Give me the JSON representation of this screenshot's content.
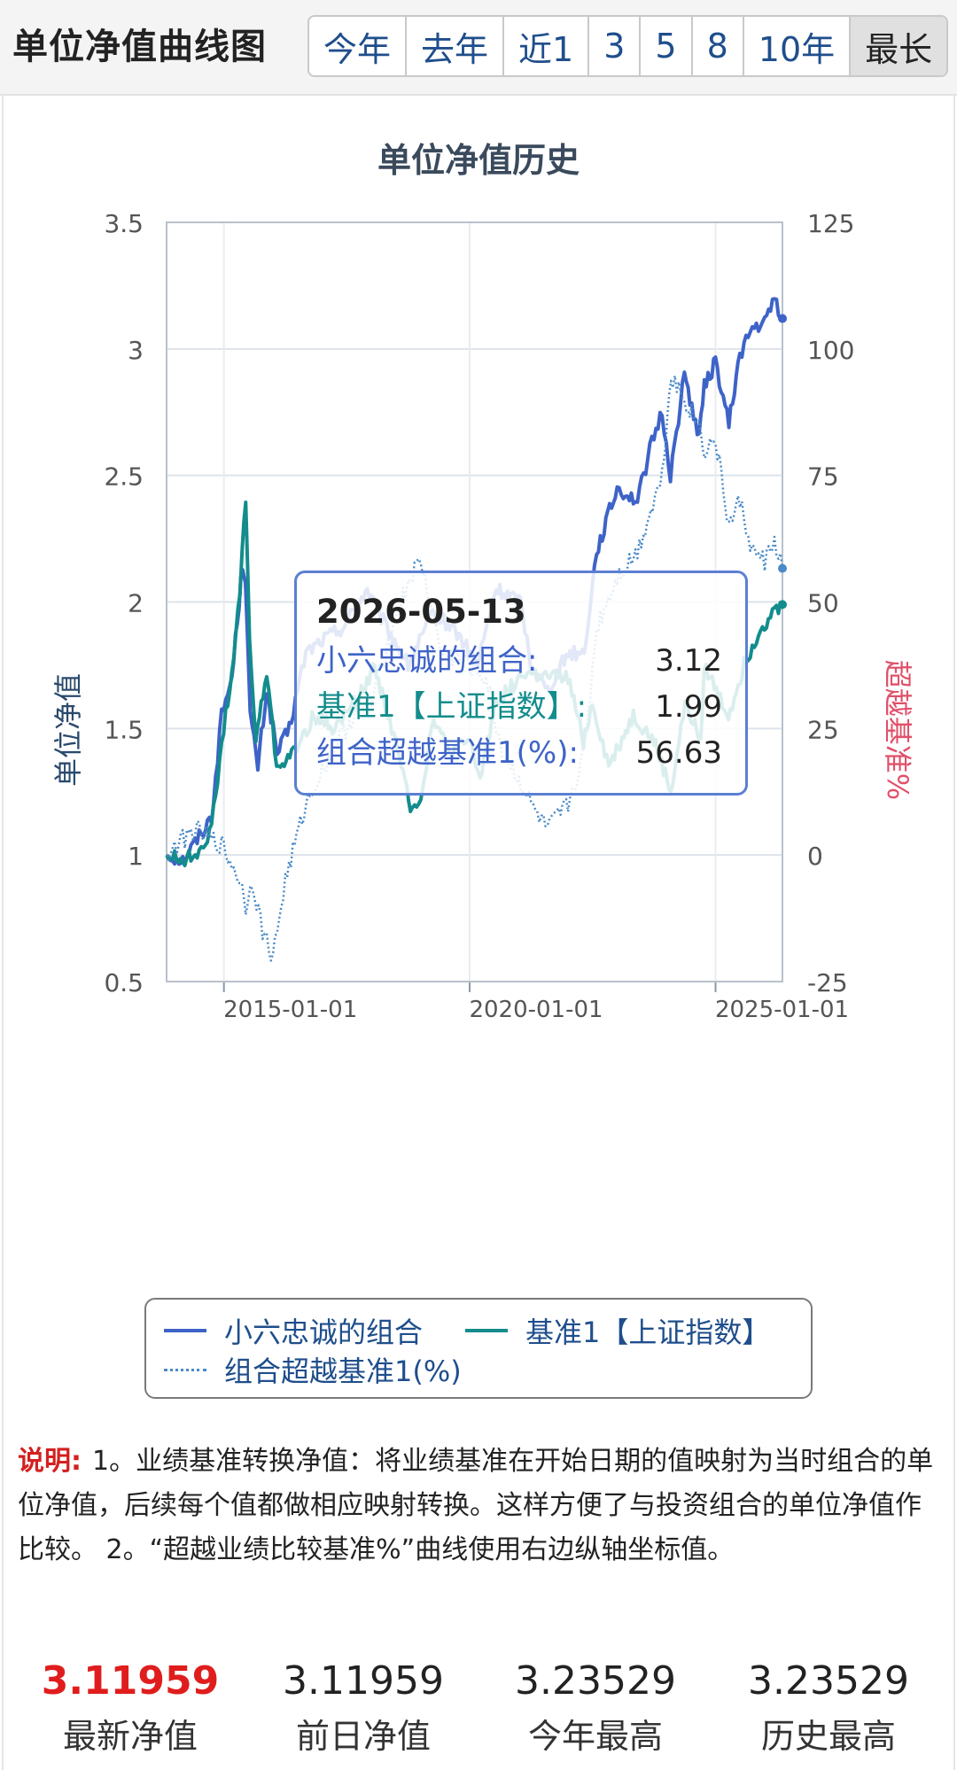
{
  "header": {
    "title": "单位净值曲线图",
    "ranges": [
      "今年",
      "去年",
      "近1",
      "3",
      "5",
      "8",
      "10年",
      "最长"
    ],
    "active_range": "最长"
  },
  "chart_data": {
    "type": "line",
    "title": "单位净值历史",
    "ylabel_left": "单位净值",
    "ylabel_right": "超越基准%",
    "ylim_left": [
      0.5,
      3.5
    ],
    "ylim_right": [
      -25,
      125
    ],
    "yticks_left": [
      "3.5",
      "3",
      "2.5",
      "2",
      "1.5",
      "1",
      "0.5"
    ],
    "yticks_right": [
      "125",
      "100",
      "75",
      "50",
      "25",
      "0",
      "-25"
    ],
    "xticks": [
      "2015-01-01",
      "2020-01-01",
      "2025-01-01"
    ],
    "xlim": [
      "2013-11-01",
      "2026-05-13"
    ],
    "grid": true,
    "legend_placement": "bottom",
    "series": [
      {
        "name": "小六忠诚的组合",
        "axis": "left",
        "color": "#3e63c8",
        "style": "solid",
        "points": [
          [
            "2013-11-01",
            1.0
          ],
          [
            "2014-03-01",
            0.98
          ],
          [
            "2014-06-01",
            1.05
          ],
          [
            "2014-10-01",
            1.15
          ],
          [
            "2014-12-15",
            1.55
          ],
          [
            "2015-03-01",
            1.7
          ],
          [
            "2015-05-20",
            2.15
          ],
          [
            "2015-06-10",
            2.1
          ],
          [
            "2015-07-15",
            1.55
          ],
          [
            "2015-09-10",
            1.35
          ],
          [
            "2015-11-15",
            1.65
          ],
          [
            "2016-02-01",
            1.4
          ],
          [
            "2016-05-01",
            1.5
          ],
          [
            "2016-09-01",
            1.8
          ],
          [
            "2017-01-01",
            1.85
          ],
          [
            "2017-06-01",
            1.9
          ],
          [
            "2017-12-01",
            2.05
          ],
          [
            "2018-03-01",
            1.95
          ],
          [
            "2018-10-01",
            1.75
          ],
          [
            "2019-04-01",
            1.95
          ],
          [
            "2019-09-01",
            1.9
          ],
          [
            "2020-03-01",
            1.75
          ],
          [
            "2020-07-15",
            2.05
          ],
          [
            "2021-01-15",
            2.0
          ],
          [
            "2021-04-01",
            1.75
          ],
          [
            "2021-08-01",
            1.65
          ],
          [
            "2022-01-01",
            1.8
          ],
          [
            "2022-05-01",
            1.8
          ],
          [
            "2022-08-01",
            2.2
          ],
          [
            "2023-01-01",
            2.45
          ],
          [
            "2023-06-01",
            2.4
          ],
          [
            "2023-09-01",
            2.6
          ],
          [
            "2023-12-01",
            2.75
          ],
          [
            "2024-02-01",
            2.5
          ],
          [
            "2024-05-15",
            2.9
          ],
          [
            "2024-09-01",
            2.65
          ],
          [
            "2024-10-10",
            2.85
          ],
          [
            "2025-01-01",
            2.95
          ],
          [
            "2025-04-10",
            2.7
          ],
          [
            "2025-07-01",
            2.98
          ],
          [
            "2025-10-01",
            3.08
          ],
          [
            "2026-01-01",
            3.1
          ],
          [
            "2026-03-15",
            3.2
          ],
          [
            "2026-05-13",
            3.12
          ]
        ]
      },
      {
        "name": "基准1【上证指数】",
        "axis": "left",
        "color": "#138c8c",
        "style": "solid",
        "points": [
          [
            "2013-11-01",
            1.0
          ],
          [
            "2014-03-01",
            0.98
          ],
          [
            "2014-06-01",
            1.0
          ],
          [
            "2014-10-01",
            1.1
          ],
          [
            "2014-12-15",
            1.45
          ],
          [
            "2015-03-01",
            1.7
          ],
          [
            "2015-05-01",
            2.05
          ],
          [
            "2015-06-12",
            2.42
          ],
          [
            "2015-07-10",
            1.85
          ],
          [
            "2015-08-26",
            1.45
          ],
          [
            "2015-11-15",
            1.72
          ],
          [
            "2016-01-28",
            1.35
          ],
          [
            "2016-06-01",
            1.4
          ],
          [
            "2016-11-01",
            1.55
          ],
          [
            "2017-04-01",
            1.5
          ],
          [
            "2017-11-01",
            1.65
          ],
          [
            "2018-01-25",
            1.75
          ],
          [
            "2018-06-01",
            1.5
          ],
          [
            "2018-10-18",
            1.2
          ],
          [
            "2019-01-03",
            1.22
          ],
          [
            "2019-04-08",
            1.55
          ],
          [
            "2019-08-01",
            1.4
          ],
          [
            "2020-01-01",
            1.45
          ],
          [
            "2020-03-19",
            1.3
          ],
          [
            "2020-07-09",
            1.6
          ],
          [
            "2021-02-18",
            1.72
          ],
          [
            "2021-09-01",
            1.7
          ],
          [
            "2022-01-01",
            1.7
          ],
          [
            "2022-04-26",
            1.45
          ],
          [
            "2022-07-01",
            1.6
          ],
          [
            "2022-10-31",
            1.35
          ],
          [
            "2023-05-01",
            1.55
          ],
          [
            "2023-10-01",
            1.45
          ],
          [
            "2024-02-05",
            1.25
          ],
          [
            "2024-05-20",
            1.6
          ],
          [
            "2024-09-13",
            1.45
          ],
          [
            "2024-10-08",
            1.75
          ],
          [
            "2025-04-07",
            1.55
          ],
          [
            "2025-08-01",
            1.75
          ],
          [
            "2025-12-01",
            1.9
          ],
          [
            "2026-05-13",
            1.99
          ]
        ]
      },
      {
        "name": "组合超越基准1(%)",
        "axis": "right",
        "color": "#4a8ac8",
        "style": "dotted",
        "points": [
          [
            "2013-11-01",
            0
          ],
          [
            "2014-03-01",
            3
          ],
          [
            "2014-06-01",
            5
          ],
          [
            "2014-10-01",
            3
          ],
          [
            "2014-12-15",
            2
          ],
          [
            "2015-05-01",
            -5
          ],
          [
            "2015-06-12",
            -10
          ],
          [
            "2015-08-01",
            -5
          ],
          [
            "2015-10-15",
            -15
          ],
          [
            "2016-01-01",
            -20
          ],
          [
            "2016-04-01",
            -5
          ],
          [
            "2016-09-01",
            10
          ],
          [
            "2017-03-01",
            20
          ],
          [
            "2017-09-01",
            28
          ],
          [
            "2018-01-01",
            30
          ],
          [
            "2018-06-01",
            45
          ],
          [
            "2018-10-18",
            55
          ],
          [
            "2019-01-03",
            58
          ],
          [
            "2019-06-01",
            40
          ],
          [
            "2019-12-01",
            38
          ],
          [
            "2020-05-01",
            35
          ],
          [
            "2020-09-01",
            20
          ],
          [
            "2021-01-01",
            15
          ],
          [
            "2021-04-01",
            10
          ],
          [
            "2021-08-01",
            5
          ],
          [
            "2022-01-01",
            10
          ],
          [
            "2022-05-01",
            20
          ],
          [
            "2022-08-01",
            45
          ],
          [
            "2023-01-01",
            55
          ],
          [
            "2023-06-01",
            60
          ],
          [
            "2023-12-01",
            75
          ],
          [
            "2024-02-05",
            95
          ],
          [
            "2024-05-15",
            90
          ],
          [
            "2024-09-01",
            85
          ],
          [
            "2024-10-10",
            80
          ],
          [
            "2025-01-01",
            82
          ],
          [
            "2025-04-10",
            65
          ],
          [
            "2025-07-01",
            70
          ],
          [
            "2025-10-01",
            60
          ],
          [
            "2026-01-01",
            58
          ],
          [
            "2026-03-15",
            62
          ],
          [
            "2026-05-13",
            56.63
          ]
        ]
      }
    ]
  },
  "tooltip": {
    "date": "2026-05-13",
    "portfolio_label": "小六忠诚的组合:",
    "portfolio_value": "3.12",
    "benchmark_label": "基准1【上证指数】:",
    "benchmark_value": "1.99",
    "excess_label": "组合超越基准1(%):",
    "excess_value": "56.63"
  },
  "legend": {
    "portfolio": "小六忠诚的组合",
    "benchmark": "基准1【上证指数】",
    "excess": "组合超越基准1(%)"
  },
  "note": {
    "label": "说明:",
    "text": "1。业绩基准转换净值：将业绩基准在开始日期的值映射为当时组合的单位净值，后续每个值都做相应映射转换。这样方便了与投资组合的单位净值作比较。 2。“超越业绩比较基准%”曲线使用右边纵轴坐标值。"
  },
  "stats": [
    {
      "value": "3.11959",
      "label": "最新净值",
      "highlight": true
    },
    {
      "value": "3.11959",
      "label": "前日净值",
      "highlight": false
    },
    {
      "value": "3.23529",
      "label": "今年最高",
      "highlight": false
    },
    {
      "value": "3.23529",
      "label": "历史最高",
      "highlight": false
    }
  ]
}
